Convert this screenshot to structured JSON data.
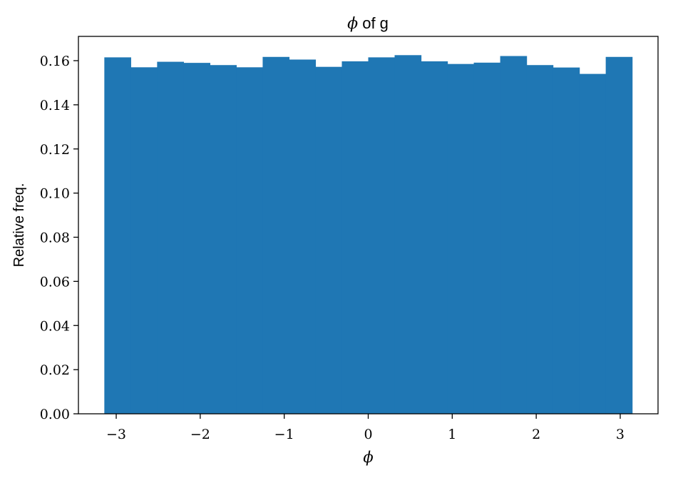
{
  "chart_data": {
    "type": "bar",
    "title_symbol": "ϕ",
    "title_rest": " of g",
    "xlabel": "ϕ",
    "ylabel": "Relative freq.",
    "xlim": [
      -3.45,
      3.45
    ],
    "ylim": [
      0.0,
      0.171
    ],
    "xticks": [
      -3,
      -2,
      -1,
      0,
      1,
      2,
      3
    ],
    "xtick_labels": [
      "−3",
      "−2",
      "−1",
      "0",
      "1",
      "2",
      "3"
    ],
    "yticks": [
      0.0,
      0.02,
      0.04,
      0.06,
      0.08,
      0.1,
      0.12,
      0.14,
      0.16
    ],
    "ytick_labels": [
      "0.00",
      "0.02",
      "0.04",
      "0.06",
      "0.08",
      "0.10",
      "0.12",
      "0.14",
      "0.16"
    ],
    "bin_edges": [
      -3.1416,
      -2.8274,
      -2.5133,
      -2.1991,
      -1.885,
      -1.5708,
      -1.2566,
      -0.9425,
      -0.6283,
      -0.3142,
      0.0,
      0.3142,
      0.6283,
      0.9425,
      1.2566,
      1.5708,
      1.885,
      2.1991,
      2.5133,
      2.8274,
      3.1416
    ],
    "values": [
      0.1615,
      0.157,
      0.1595,
      0.159,
      0.158,
      0.157,
      0.1617,
      0.1605,
      0.1572,
      0.1597,
      0.1615,
      0.1625,
      0.1597,
      0.1585,
      0.1591,
      0.1621,
      0.158,
      0.1569,
      0.154,
      0.1617
    ],
    "bar_color": "#1f77b4",
    "grid": false
  }
}
